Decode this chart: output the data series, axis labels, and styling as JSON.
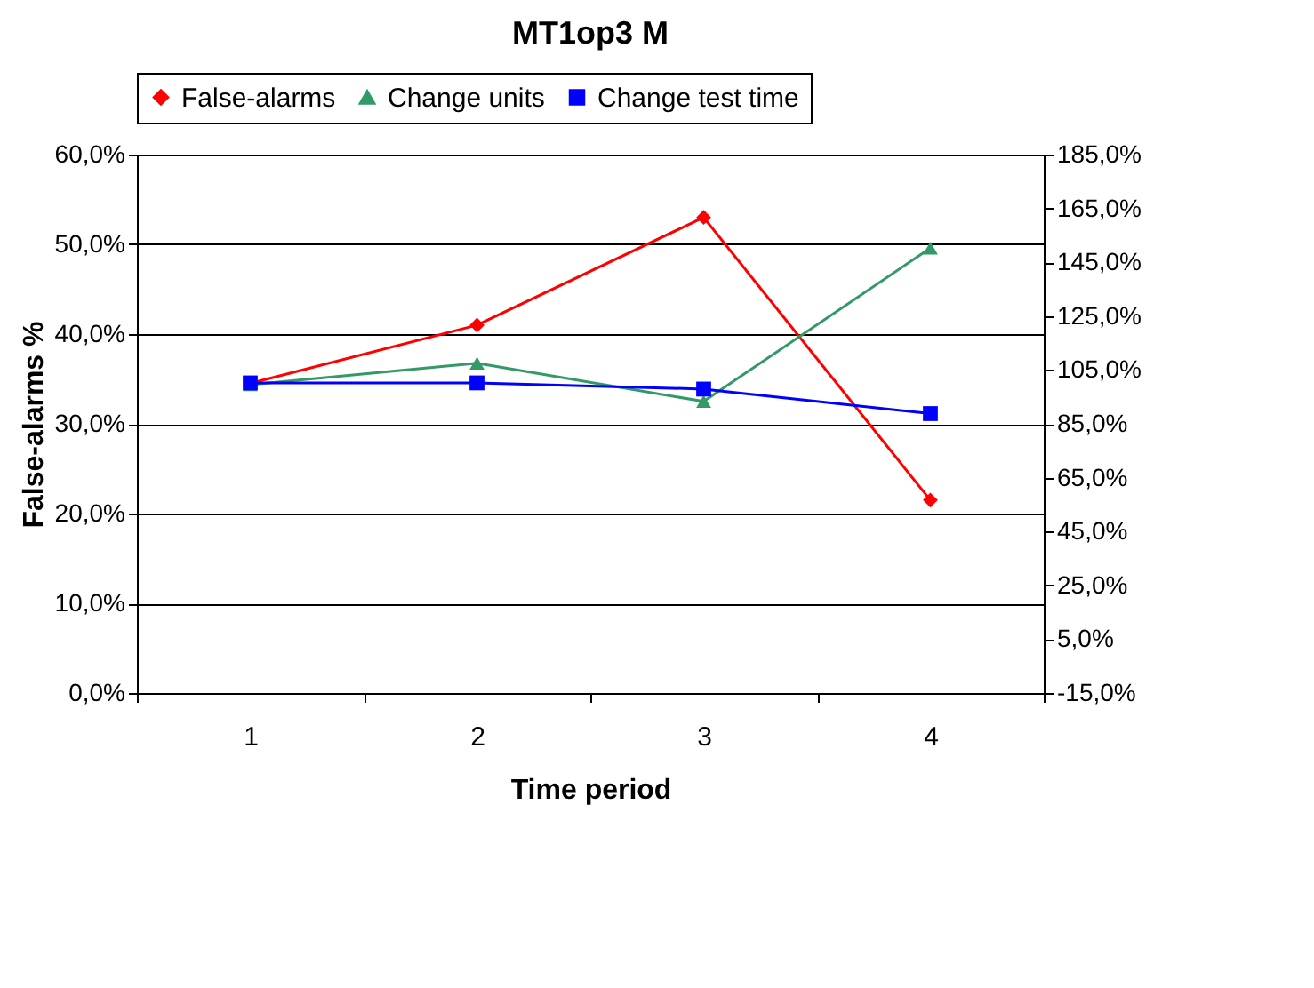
{
  "chart_data": {
    "type": "line",
    "title": "MT1op3 M",
    "xlabel": "Time period",
    "ylabel": "False-alarms %",
    "categories": [
      "1",
      "2",
      "3",
      "4"
    ],
    "series": [
      {
        "name": "False-alarms",
        "color": "#ff0000",
        "marker": "diamond",
        "values": [
          34.5,
          41.0,
          53.0,
          21.5
        ]
      },
      {
        "name": "Change units",
        "color": "#339966",
        "marker": "triangle",
        "axis": "y2",
        "values": [
          99.5,
          107.5,
          93.3,
          150.3
        ]
      },
      {
        "name": "Change test time",
        "color": "#0000ff",
        "marker": "square",
        "axis": "y2",
        "values": [
          100.2,
          100.2,
          97.9,
          88.8
        ]
      }
    ],
    "ylim": [
      0,
      60
    ],
    "yticks": [
      {
        "value": 0,
        "label": "0,0%"
      },
      {
        "value": 10,
        "label": "10,0%"
      },
      {
        "value": 20,
        "label": "20,0%"
      },
      {
        "value": 30,
        "label": "30,0%"
      },
      {
        "value": 40,
        "label": "40,0%"
      },
      {
        "value": 50,
        "label": "50,0%"
      },
      {
        "value": 60,
        "label": "60,0%"
      }
    ],
    "y2lim": [
      -15,
      185
    ],
    "y2ticks": [
      {
        "value": -15,
        "label": "-15,0%"
      },
      {
        "value": 5,
        "label": "5,0%"
      },
      {
        "value": 25,
        "label": "25,0%"
      },
      {
        "value": 45,
        "label": "45,0%"
      },
      {
        "value": 65,
        "label": "65,0%"
      },
      {
        "value": 85,
        "label": "85,0%"
      },
      {
        "value": 105,
        "label": "105,0%"
      },
      {
        "value": 125,
        "label": "125,0%"
      },
      {
        "value": 145,
        "label": "145,0%"
      },
      {
        "value": 165,
        "label": "165,0%"
      },
      {
        "value": 185,
        "label": "185,0%"
      }
    ],
    "grid": "y",
    "legend": "top",
    "line_style": "solid"
  }
}
